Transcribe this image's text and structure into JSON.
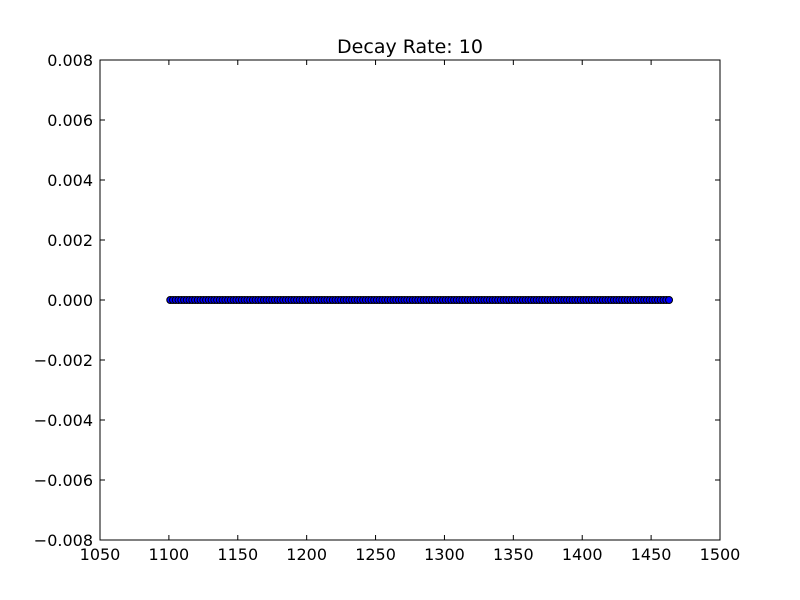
{
  "chart_data": {
    "type": "scatter",
    "title": "Decay Rate: 10",
    "xlabel": "",
    "ylabel": "",
    "xlim": [
      1050,
      1500
    ],
    "ylim": [
      -0.008,
      0.008
    ],
    "x_ticks": [
      1050,
      1100,
      1150,
      1200,
      1250,
      1300,
      1350,
      1400,
      1450,
      1500
    ],
    "x_tick_labels": [
      "1050",
      "1100",
      "1150",
      "1200",
      "1250",
      "1300",
      "1350",
      "1400",
      "1450",
      "1500"
    ],
    "y_ticks": [
      0.008,
      0.006,
      0.004,
      0.002,
      0.0,
      -0.002,
      -0.004,
      -0.006,
      -0.008
    ],
    "y_tick_labels": [
      "0.008",
      "0.006",
      "0.004",
      "0.002",
      "0.000",
      "−0.002",
      "−0.004",
      "−0.006",
      "−0.008"
    ],
    "grid": false,
    "marker_color": "#0000ff",
    "marker_edge_color": "#000000",
    "series": [
      {
        "x": [
          1101,
          1103,
          1105,
          1107,
          1109,
          1111,
          1113,
          1115,
          1117,
          1119,
          1121,
          1123,
          1125,
          1127,
          1129,
          1131,
          1133,
          1135,
          1137,
          1139,
          1141,
          1143,
          1145,
          1147,
          1149,
          1151,
          1153,
          1155,
          1157,
          1159,
          1161,
          1163,
          1165,
          1167,
          1169,
          1171,
          1173,
          1175,
          1177,
          1179,
          1181,
          1183,
          1185,
          1187,
          1189,
          1191,
          1193,
          1195,
          1197,
          1199,
          1201,
          1203,
          1205,
          1207,
          1209,
          1211,
          1213,
          1215,
          1217,
          1219,
          1221,
          1223,
          1225,
          1227,
          1229,
          1231,
          1233,
          1235,
          1237,
          1239,
          1241,
          1243,
          1245,
          1247,
          1249,
          1251,
          1253,
          1255,
          1257,
          1259,
          1261,
          1263,
          1265,
          1267,
          1269,
          1271,
          1273,
          1275,
          1277,
          1279,
          1281,
          1283,
          1285,
          1287,
          1289,
          1291,
          1293,
          1295,
          1297,
          1299,
          1301,
          1303,
          1305,
          1307,
          1309,
          1311,
          1313,
          1315,
          1317,
          1319,
          1321,
          1323,
          1325,
          1327,
          1329,
          1331,
          1333,
          1335,
          1337,
          1339,
          1341,
          1343,
          1345,
          1347,
          1349,
          1351,
          1353,
          1355,
          1357,
          1359,
          1361,
          1363,
          1365,
          1367,
          1369,
          1371,
          1373,
          1375,
          1377,
          1379,
          1381,
          1383,
          1385,
          1387,
          1389,
          1391,
          1393,
          1395,
          1397,
          1399,
          1401,
          1403,
          1405,
          1407,
          1409,
          1411,
          1413,
          1415,
          1417,
          1419,
          1421,
          1423,
          1425,
          1427,
          1429,
          1431,
          1433,
          1435,
          1437,
          1439,
          1441,
          1443,
          1445,
          1447,
          1449,
          1451,
          1453,
          1455,
          1457,
          1459,
          1461,
          1463
        ],
        "y": [
          0,
          0,
          0,
          0,
          0,
          0,
          0,
          0,
          0,
          0,
          0,
          0,
          0,
          0,
          0,
          0,
          0,
          0,
          0,
          0,
          0,
          0,
          0,
          0,
          0,
          0,
          0,
          0,
          0,
          0,
          0,
          0,
          0,
          0,
          0,
          0,
          0,
          0,
          0,
          0,
          0,
          0,
          0,
          0,
          0,
          0,
          0,
          0,
          0,
          0,
          0,
          0,
          0,
          0,
          0,
          0,
          0,
          0,
          0,
          0,
          0,
          0,
          0,
          0,
          0,
          0,
          0,
          0,
          0,
          0,
          0,
          0,
          0,
          0,
          0,
          0,
          0,
          0,
          0,
          0,
          0,
          0,
          0,
          0,
          0,
          0,
          0,
          0,
          0,
          0,
          0,
          0,
          0,
          0,
          0,
          0,
          0,
          0,
          0,
          0,
          0,
          0,
          0,
          0,
          0,
          0,
          0,
          0,
          0,
          0,
          0,
          0,
          0,
          0,
          0,
          0,
          0,
          0,
          0,
          0,
          0,
          0,
          0,
          0,
          0,
          0,
          0,
          0,
          0,
          0,
          0,
          0,
          0,
          0,
          0,
          0,
          0,
          0,
          0,
          0,
          0,
          0,
          0,
          0,
          0,
          0,
          0,
          0,
          0,
          0,
          0,
          0,
          0,
          0,
          0,
          0,
          0,
          0,
          0,
          0,
          0,
          0,
          0,
          0,
          0,
          0,
          0,
          0,
          0,
          0,
          0,
          0,
          0,
          0,
          0,
          0,
          0,
          0,
          0,
          0,
          0,
          0
        ]
      }
    ]
  }
}
